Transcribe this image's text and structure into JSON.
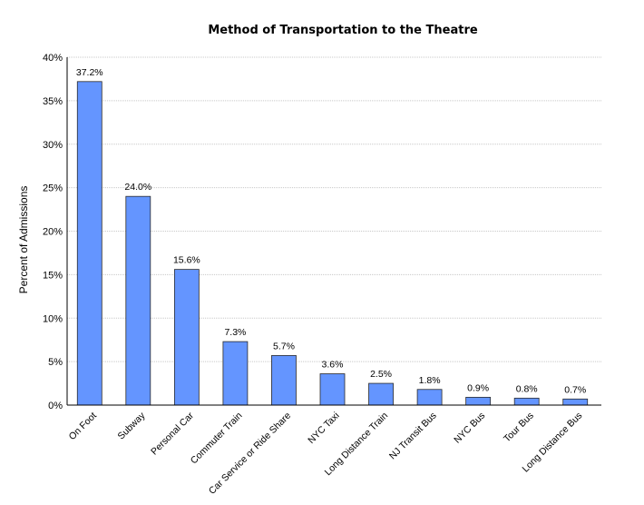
{
  "chart_data": {
    "type": "bar",
    "title": "Method of Transportation to the Theatre",
    "ylabel": "Percent of Admissions",
    "xlabel": "",
    "ylim": [
      0,
      40
    ],
    "yticks": [
      "0%",
      "5%",
      "10%",
      "15%",
      "20%",
      "25%",
      "30%",
      "35%",
      "40%"
    ],
    "grid": true,
    "legend": "none",
    "bar_color": "#6495ff",
    "categories": [
      "On Foot",
      "Subway",
      "Personal Car",
      "Commuter Train",
      "Car Service or Ride Share",
      "NYC Taxi",
      "Long Distance Train",
      "NJ Transit Bus",
      "NYC Bus",
      "Tour Bus",
      "Long Distance Bus"
    ],
    "values": [
      37.2,
      24.0,
      15.6,
      7.3,
      5.7,
      3.6,
      2.5,
      1.8,
      0.9,
      0.8,
      0.7
    ],
    "data_labels": [
      "37.2%",
      "24.0%",
      "15.6%",
      "7.3%",
      "5.7%",
      "3.6%",
      "2.5%",
      "1.8%",
      "0.9%",
      "0.8%",
      "0.7%"
    ]
  }
}
